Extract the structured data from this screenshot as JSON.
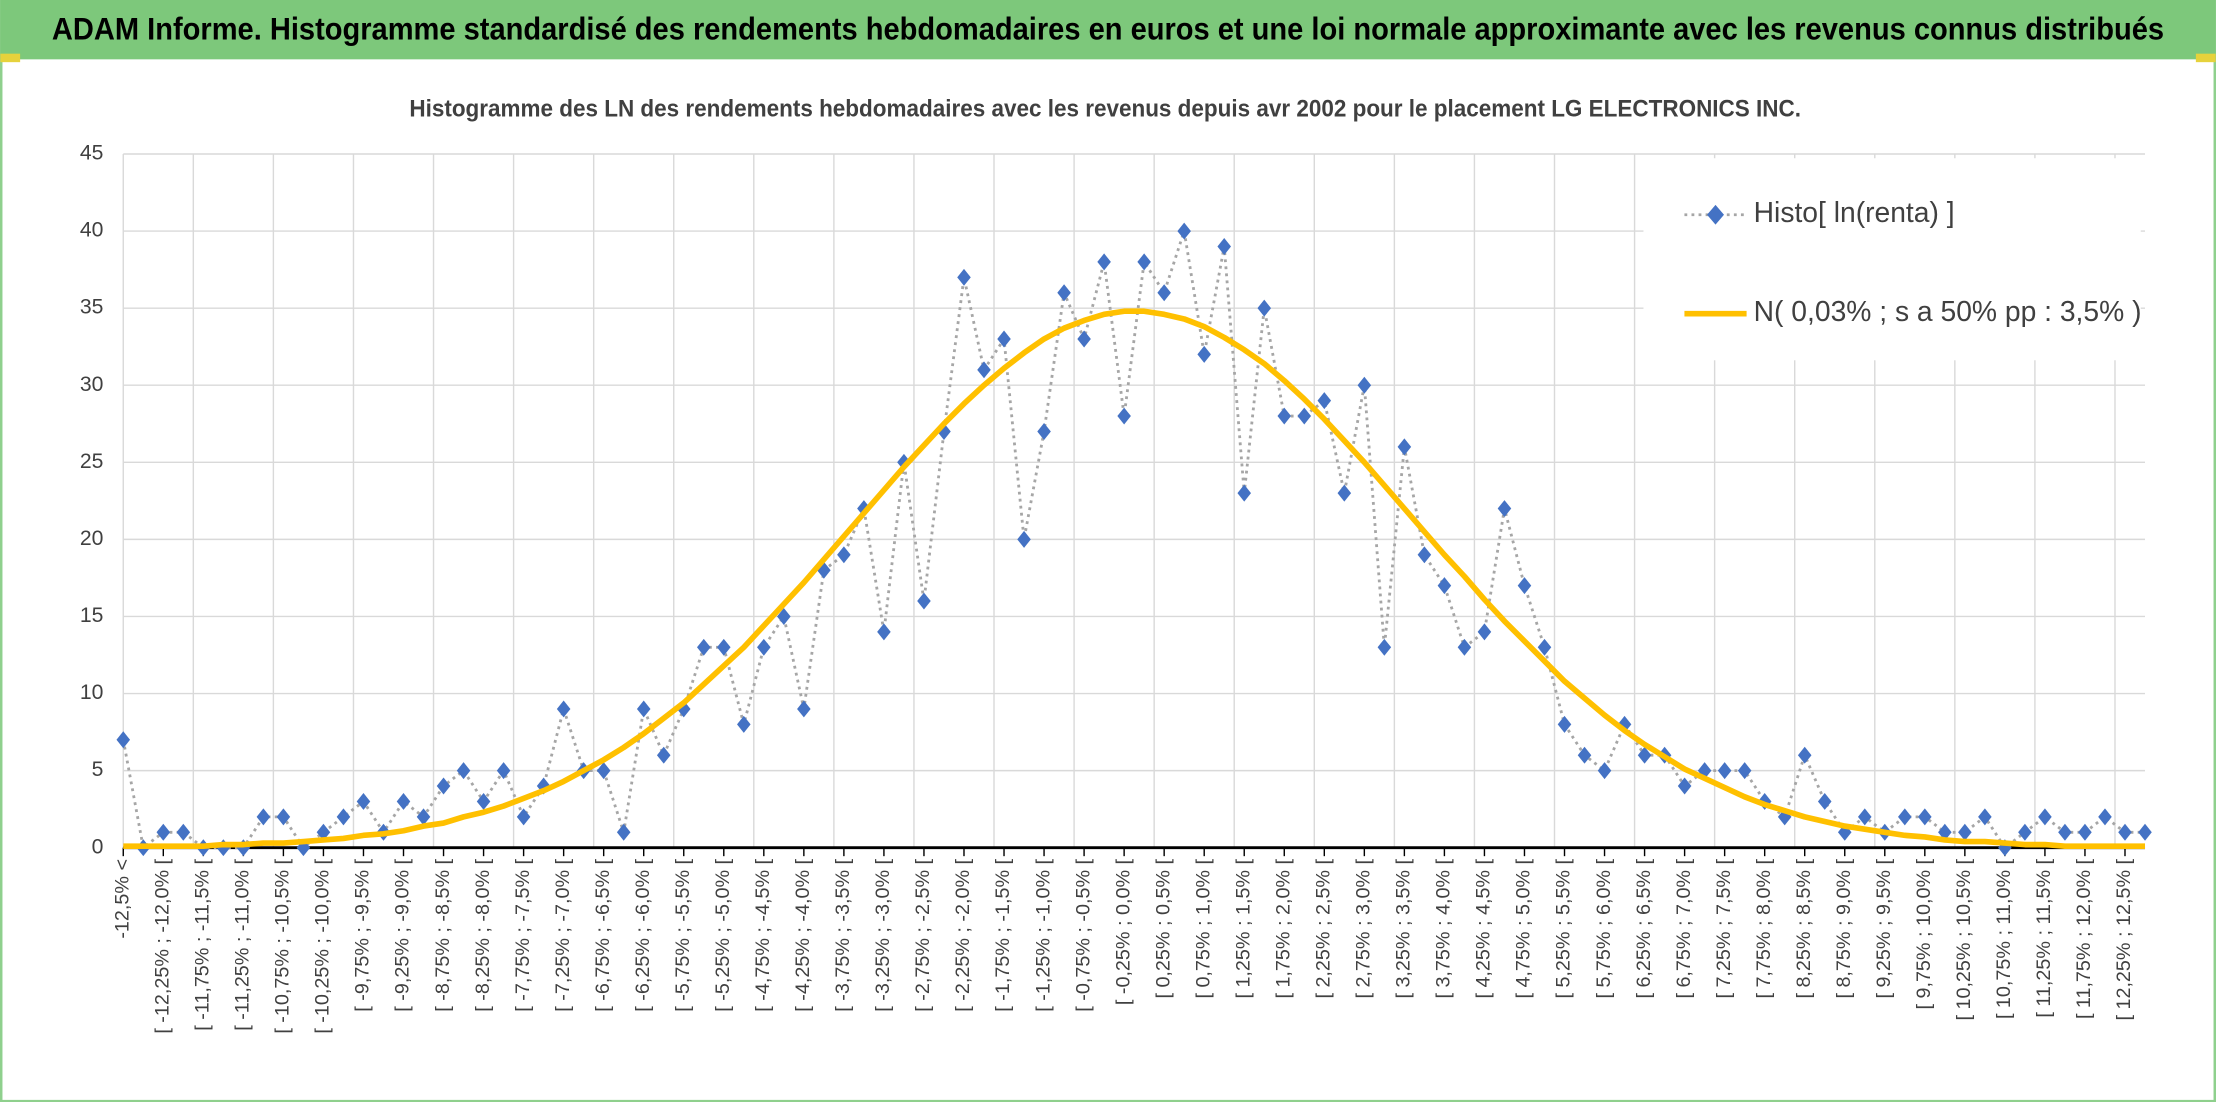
{
  "chart_data": {
    "type": "line",
    "title": "ADAM Informe. Histogramme standardisé des rendements hebdomadaires en euros et une loi normale approximante avec les revenus connus distribués",
    "subtitle": "Histogramme des LN des rendements hebdomadaires avec les revenus depuis avr 2002 pour le placement LG ELECTRONICS  INC.",
    "categories": [
      "-12,5% <",
      null,
      "[ -12,25% ; -12,0% [",
      null,
      "[ -11,75% ; -11,5% [",
      null,
      "[ -11,25% ; -11,0% [",
      null,
      "[ -10,75% ; -10,5% [",
      null,
      "[ -10,25% ; -10,0% [",
      null,
      "[ -9,75% ; -9,5% [",
      null,
      "[ -9,25% ; -9,0% [",
      null,
      "[ -8,75% ; -8,5% [",
      null,
      "[ -8,25% ; -8,0% [",
      null,
      "[ -7,75% ; -7,5% [",
      null,
      "[ -7,25% ; -7,0% [",
      null,
      "[ -6,75% ; -6,5% [",
      null,
      "[ -6,25% ; -6,0% [",
      null,
      "[ -5,75% ; -5,5% [",
      null,
      "[ -5,25% ; -5,0% [",
      null,
      "[ -4,75% ; -4,5% [",
      null,
      "[ -4,25% ; -4,0% [",
      null,
      "[ -3,75% ; -3,5% [",
      null,
      "[ -3,25% ; -3,0% [",
      null,
      "[ -2,75% ; -2,5% [",
      null,
      "[ -2,25% ; -2,0% [",
      null,
      "[ -1,75% ; -1,5% [",
      null,
      "[ -1,25% ; -1,0% [",
      null,
      "[ -0,75% ; -0,5% [",
      null,
      "[ -0,25% ; 0,0% [",
      null,
      "[ 0,25% ; 0,5% [",
      null,
      "[ 0,75% ; 1,0% [",
      null,
      "[ 1,25% ; 1,5% [",
      null,
      "[ 1,75% ; 2,0% [",
      null,
      "[ 2,25% ; 2,5% [",
      null,
      "[ 2,75% ; 3,0% [",
      null,
      "[ 3,25% ; 3,5% [",
      null,
      "[ 3,75% ; 4,0% [",
      null,
      "[ 4,25% ; 4,5% [",
      null,
      "[ 4,75% ; 5,0% [",
      null,
      "[ 5,25% ; 5,5% [",
      null,
      "[ 5,75% ; 6,0% [",
      null,
      "[ 6,25% ; 6,5% [",
      null,
      "[ 6,75% ; 7,0% [",
      null,
      "[ 7,25% ; 7,5% [",
      null,
      "[ 7,75% ; 8,0% [",
      null,
      "[ 8,25% ; 8,5% [",
      null,
      "[ 8,75% ; 9,0% [",
      null,
      "[ 9,25% ; 9,5% [",
      null,
      "[ 9,75% ; 10,0% [",
      null,
      "[ 10,25% ; 10,5% [",
      null,
      "[ 10,75% ; 11,0% [",
      null,
      "[ 11,25% ; 11,5% [",
      null,
      "[ 11,75% ; 12,0% [",
      null,
      "[ 12,25% ; 12,5% [",
      null
    ],
    "series": [
      {
        "name": "Histo[ ln(renta) ]",
        "color": "#4472c4",
        "line_color": "#a6a6a6",
        "values": [
          7,
          0,
          1,
          1,
          0,
          0,
          0,
          2,
          2,
          0,
          1,
          2,
          3,
          1,
          3,
          2,
          4,
          5,
          3,
          5,
          2,
          4,
          9,
          5,
          5,
          1,
          9,
          6,
          9,
          13,
          13,
          8,
          13,
          15,
          9,
          18,
          19,
          22,
          14,
          25,
          16,
          27,
          37,
          31,
          33,
          20,
          27,
          36,
          33,
          38,
          28,
          38,
          36,
          40,
          32,
          39,
          23,
          35,
          28,
          28,
          29,
          23,
          30,
          13,
          26,
          19,
          17,
          13,
          14,
          22,
          17,
          13,
          8,
          6,
          5,
          8,
          6,
          6,
          4,
          5,
          5,
          5,
          3,
          2,
          6,
          3,
          1,
          2,
          1,
          2,
          2,
          1,
          1,
          2,
          0,
          1,
          2,
          1,
          1,
          2,
          1,
          1
        ]
      },
      {
        "name": "N( 0,03% ; s a 50% pp : 3,5% )",
        "color": "#ffc000",
        "values": [
          0.1,
          0.1,
          0.1,
          0.1,
          0.1,
          0.2,
          0.2,
          0.3,
          0.3,
          0.4,
          0.5,
          0.6,
          0.8,
          0.9,
          1.1,
          1.4,
          1.6,
          2.0,
          2.3,
          2.7,
          3.2,
          3.7,
          4.3,
          5.0,
          5.7,
          6.5,
          7.4,
          8.4,
          9.4,
          10.6,
          11.8,
          13.0,
          14.4,
          15.8,
          17.2,
          18.7,
          20.2,
          21.7,
          23.2,
          24.7,
          26.1,
          27.5,
          28.8,
          30.0,
          31.1,
          32.1,
          33.0,
          33.7,
          34.2,
          34.6,
          34.8,
          34.8,
          34.6,
          34.3,
          33.8,
          33.1,
          32.3,
          31.4,
          30.3,
          29.1,
          27.8,
          26.4,
          25.0,
          23.5,
          22.0,
          20.5,
          19.0,
          17.6,
          16.1,
          14.7,
          13.4,
          12.1,
          10.8,
          9.7,
          8.6,
          7.6,
          6.7,
          5.9,
          5.1,
          4.5,
          3.9,
          3.3,
          2.8,
          2.4,
          2.0,
          1.7,
          1.4,
          1.2,
          1.0,
          0.8,
          0.7,
          0.5,
          0.4,
          0.4,
          0.3,
          0.2,
          0.2,
          0.1,
          0.1,
          0.1,
          0.1,
          0.1
        ]
      }
    ],
    "ylim": [
      0,
      45
    ],
    "yticks": [
      0,
      5,
      10,
      15,
      20,
      25,
      30,
      35,
      40,
      45
    ],
    "grid": true,
    "legend": "top-right"
  }
}
